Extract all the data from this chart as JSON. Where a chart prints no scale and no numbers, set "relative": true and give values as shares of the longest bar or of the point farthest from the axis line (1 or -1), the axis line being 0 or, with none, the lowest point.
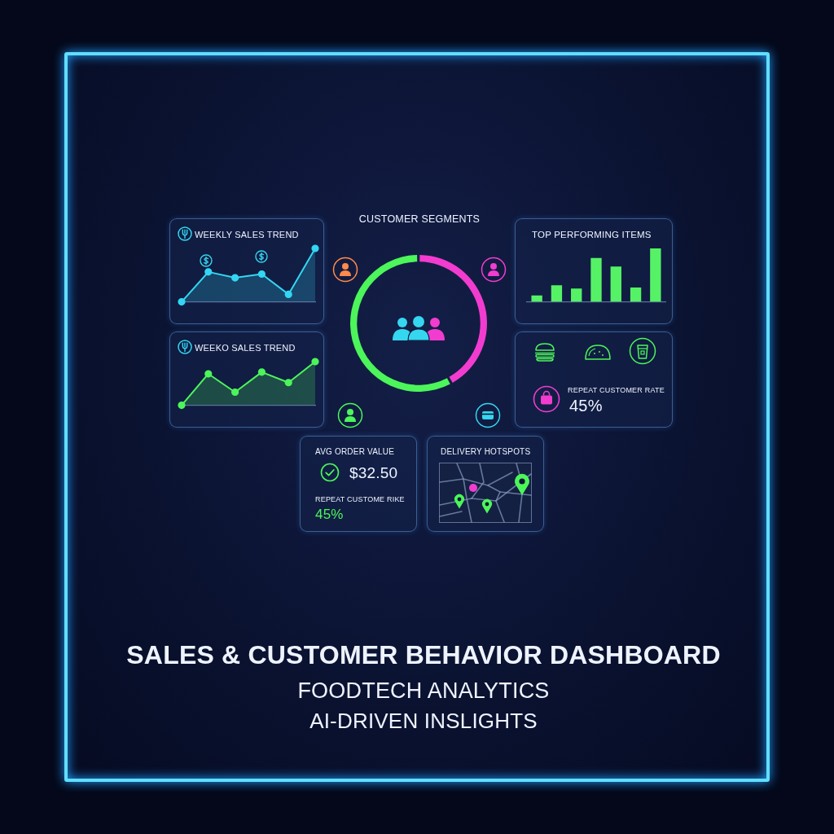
{
  "chart_data": [
    {
      "type": "area",
      "title": "WEEKLY SALES TREND",
      "categories": [
        null,
        null,
        null,
        null,
        null,
        null
      ],
      "series": [
        {
          "color": "#33d6f2",
          "values": [
            0,
            0.56,
            0.45,
            0.52,
            0.14,
            1
          ]
        }
      ],
      "relative": true,
      "marker": "circle"
    },
    {
      "type": "area",
      "title": "WEEKO SALES TREND",
      "categories": [
        null,
        null,
        null,
        null,
        null,
        null
      ],
      "series": [
        {
          "color": "#4cf55a",
          "values": [
            0,
            0.72,
            0.3,
            0.76,
            0.52,
            1
          ]
        }
      ],
      "relative": true,
      "marker": "circle"
    },
    {
      "type": "donut",
      "title": "CUSTOMER SEGMENTS",
      "categories": [
        null,
        null
      ],
      "values": [
        42,
        58
      ],
      "colors": [
        "#f23cd0",
        "#4cf55a"
      ]
    },
    {
      "type": "bar",
      "title": "TOP PERFORMING ITEMS",
      "categories": [
        null,
        null,
        null,
        null,
        null,
        null,
        null
      ],
      "values": [
        0.12,
        0.31,
        0.25,
        0.82,
        0.66,
        0.27,
        1
      ],
      "color": "#55f266",
      "relative": true
    },
    {
      "type": "other",
      "title": "REPEAT CUSTOMER RATE",
      "annotations": [
        "45%"
      ]
    },
    {
      "type": "other",
      "title": "AVG ORDER VALUE",
      "annotations": [
        "$32.50",
        "REPEAT CUSTOME RIKE",
        "45%"
      ]
    },
    {
      "type": "other",
      "title": "DELIVERY HOTSPOTS"
    },
    {
      "type": "other",
      "title": "SALES & CUSTOMER BEHAVIOR DASHBOARD",
      "subtitle": "FOODTECH ANALYTICS",
      "annotations": [
        "AI-DRIVEN INSLIGHTS"
      ]
    }
  ]
}
